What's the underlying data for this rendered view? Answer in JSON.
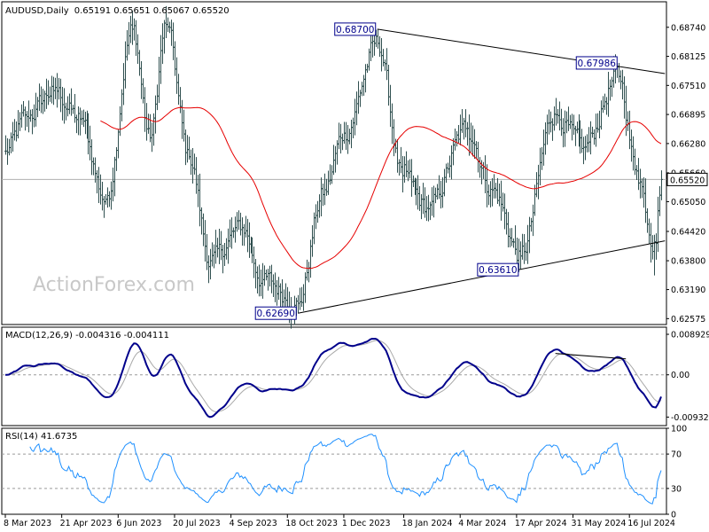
{
  "chart_data": [
    {
      "type": "ohlc",
      "title": "AUDUSD,Daily",
      "ohlc_readout": "0.65191 0.65651 0.65067 0.65520",
      "watermark": "ActionForex.com",
      "ylim": [
        0.6245,
        0.6928
      ],
      "yticks": [
        "0.68740",
        "0.68125",
        "0.67510",
        "0.66895",
        "0.66280",
        "0.65660",
        "0.65050",
        "0.64420",
        "0.63800",
        "0.63190",
        "0.62575"
      ],
      "ytick_values": [
        0.6874,
        0.68125,
        0.6751,
        0.66895,
        0.6628,
        0.6566,
        0.6505,
        0.6442,
        0.638,
        0.6319,
        0.62575
      ],
      "current_price": 0.6552,
      "current_price_label": "0.65520",
      "ma_color": "#e60000",
      "bar_color": "#2f4f4f",
      "anchors": [
        {
          "date": "2023-03-08",
          "value": 0.6612
        },
        {
          "date": "2023-03-24",
          "value": 0.6685
        },
        {
          "date": "2023-04-14",
          "value": 0.674
        },
        {
          "date": "2023-05-05",
          "value": 0.668
        },
        {
          "date": "2023-05-26",
          "value": 0.651
        },
        {
          "date": "2023-06-16",
          "value": 0.687
        },
        {
          "date": "2023-06-30",
          "value": 0.664
        },
        {
          "date": "2023-07-13",
          "value": 0.688
        },
        {
          "date": "2023-08-01",
          "value": 0.66
        },
        {
          "date": "2023-08-17",
          "value": 0.638
        },
        {
          "date": "2023-09-12",
          "value": 0.645
        },
        {
          "date": "2023-09-28",
          "value": 0.634
        },
        {
          "date": "2023-10-26",
          "value": 0.629
        },
        {
          "date": "2023-11-15",
          "value": 0.652
        },
        {
          "date": "2023-12-01",
          "value": 0.665
        },
        {
          "date": "2023-12-28",
          "value": 0.684
        },
        {
          "date": "2024-01-17",
          "value": 0.656
        },
        {
          "date": "2024-02-07",
          "value": 0.649
        },
        {
          "date": "2024-03-08",
          "value": 0.666
        },
        {
          "date": "2024-03-28",
          "value": 0.653
        },
        {
          "date": "2024-04-19",
          "value": 0.639
        },
        {
          "date": "2024-05-16",
          "value": 0.669
        },
        {
          "date": "2024-06-10",
          "value": 0.662
        },
        {
          "date": "2024-07-08",
          "value": 0.677
        },
        {
          "date": "2024-07-22",
          "value": 0.657
        },
        {
          "date": "2024-08-05",
          "value": 0.642
        },
        {
          "date": "2024-08-09",
          "value": 0.6552
        }
      ],
      "peak_labels": [
        {
          "text": "0.68700",
          "date": "2023-12-28",
          "value": 0.687
        },
        {
          "text": "0.67986",
          "date": "2024-07-08",
          "value": 0.67986
        },
        {
          "text": "0.63610",
          "date": "2024-04-19",
          "value": 0.6361
        },
        {
          "text": "0.62690",
          "date": "2023-10-26",
          "value": 0.6269
        }
      ],
      "trendlines": [
        {
          "from_date": "2023-12-28",
          "from_value": 0.687,
          "to_date": "2024-08-12",
          "to_value": 0.6776
        },
        {
          "from_date": "2023-10-26",
          "from_value": 0.6269,
          "to_date": "2024-08-12",
          "to_value": 0.6422
        }
      ],
      "special_bars": [
        {
          "date": "2023-10-26",
          "low": 0.6269
        },
        {
          "date": "2023-12-28",
          "high": 0.687
        },
        {
          "date": "2024-04-19",
          "low": 0.6361
        },
        {
          "date": "2024-07-08",
          "high": 0.67986
        },
        {
          "date": "2024-08-05",
          "low": 0.6349,
          "high": 0.6435
        }
      ]
    },
    {
      "type": "line",
      "title": "MACD(12,26,9) -0.004316 -0.004111",
      "ylim": [
        -0.0112,
        0.0105
      ],
      "yticks": [
        "0.008929",
        "0.00",
        "-0.009321"
      ],
      "ytick_values": [
        0.008929,
        0.0,
        -0.009321
      ],
      "macd_color": "#00008b",
      "signal_color": "#a9a9a9",
      "divergence_line": {
        "from_date": "2024-05-17",
        "from_value": 0.0047,
        "to_date": "2024-07-12",
        "to_value": 0.0035
      }
    },
    {
      "type": "line",
      "title": "RSI(14) 41.6735",
      "ylim": [
        0,
        100
      ],
      "yticks": [
        "100",
        "70",
        "30",
        "0"
      ],
      "ytick_values": [
        100,
        70,
        30,
        0
      ],
      "line_color": "#1e90ff"
    }
  ],
  "x_axis": {
    "labels": [
      "8 Mar 2023",
      "21 Apr 2023",
      "6 Jun 2023",
      "20 Jul 2023",
      "4 Sep 2023",
      "18 Oct 2023",
      "1 Dec 2023",
      "18 Jan 2024",
      "4 Mar 2024",
      "17 Apr 2024",
      "31 May 2024",
      "16 Jul 2024"
    ],
    "label_dates": [
      "2023-03-08",
      "2023-04-21",
      "2023-06-06",
      "2023-07-20",
      "2023-09-04",
      "2023-10-18",
      "2023-12-01",
      "2024-01-18",
      "2024-03-04",
      "2024-04-17",
      "2024-05-31",
      "2024-07-16"
    ],
    "first_date": "2023-03-08",
    "last_date": "2024-08-09"
  }
}
